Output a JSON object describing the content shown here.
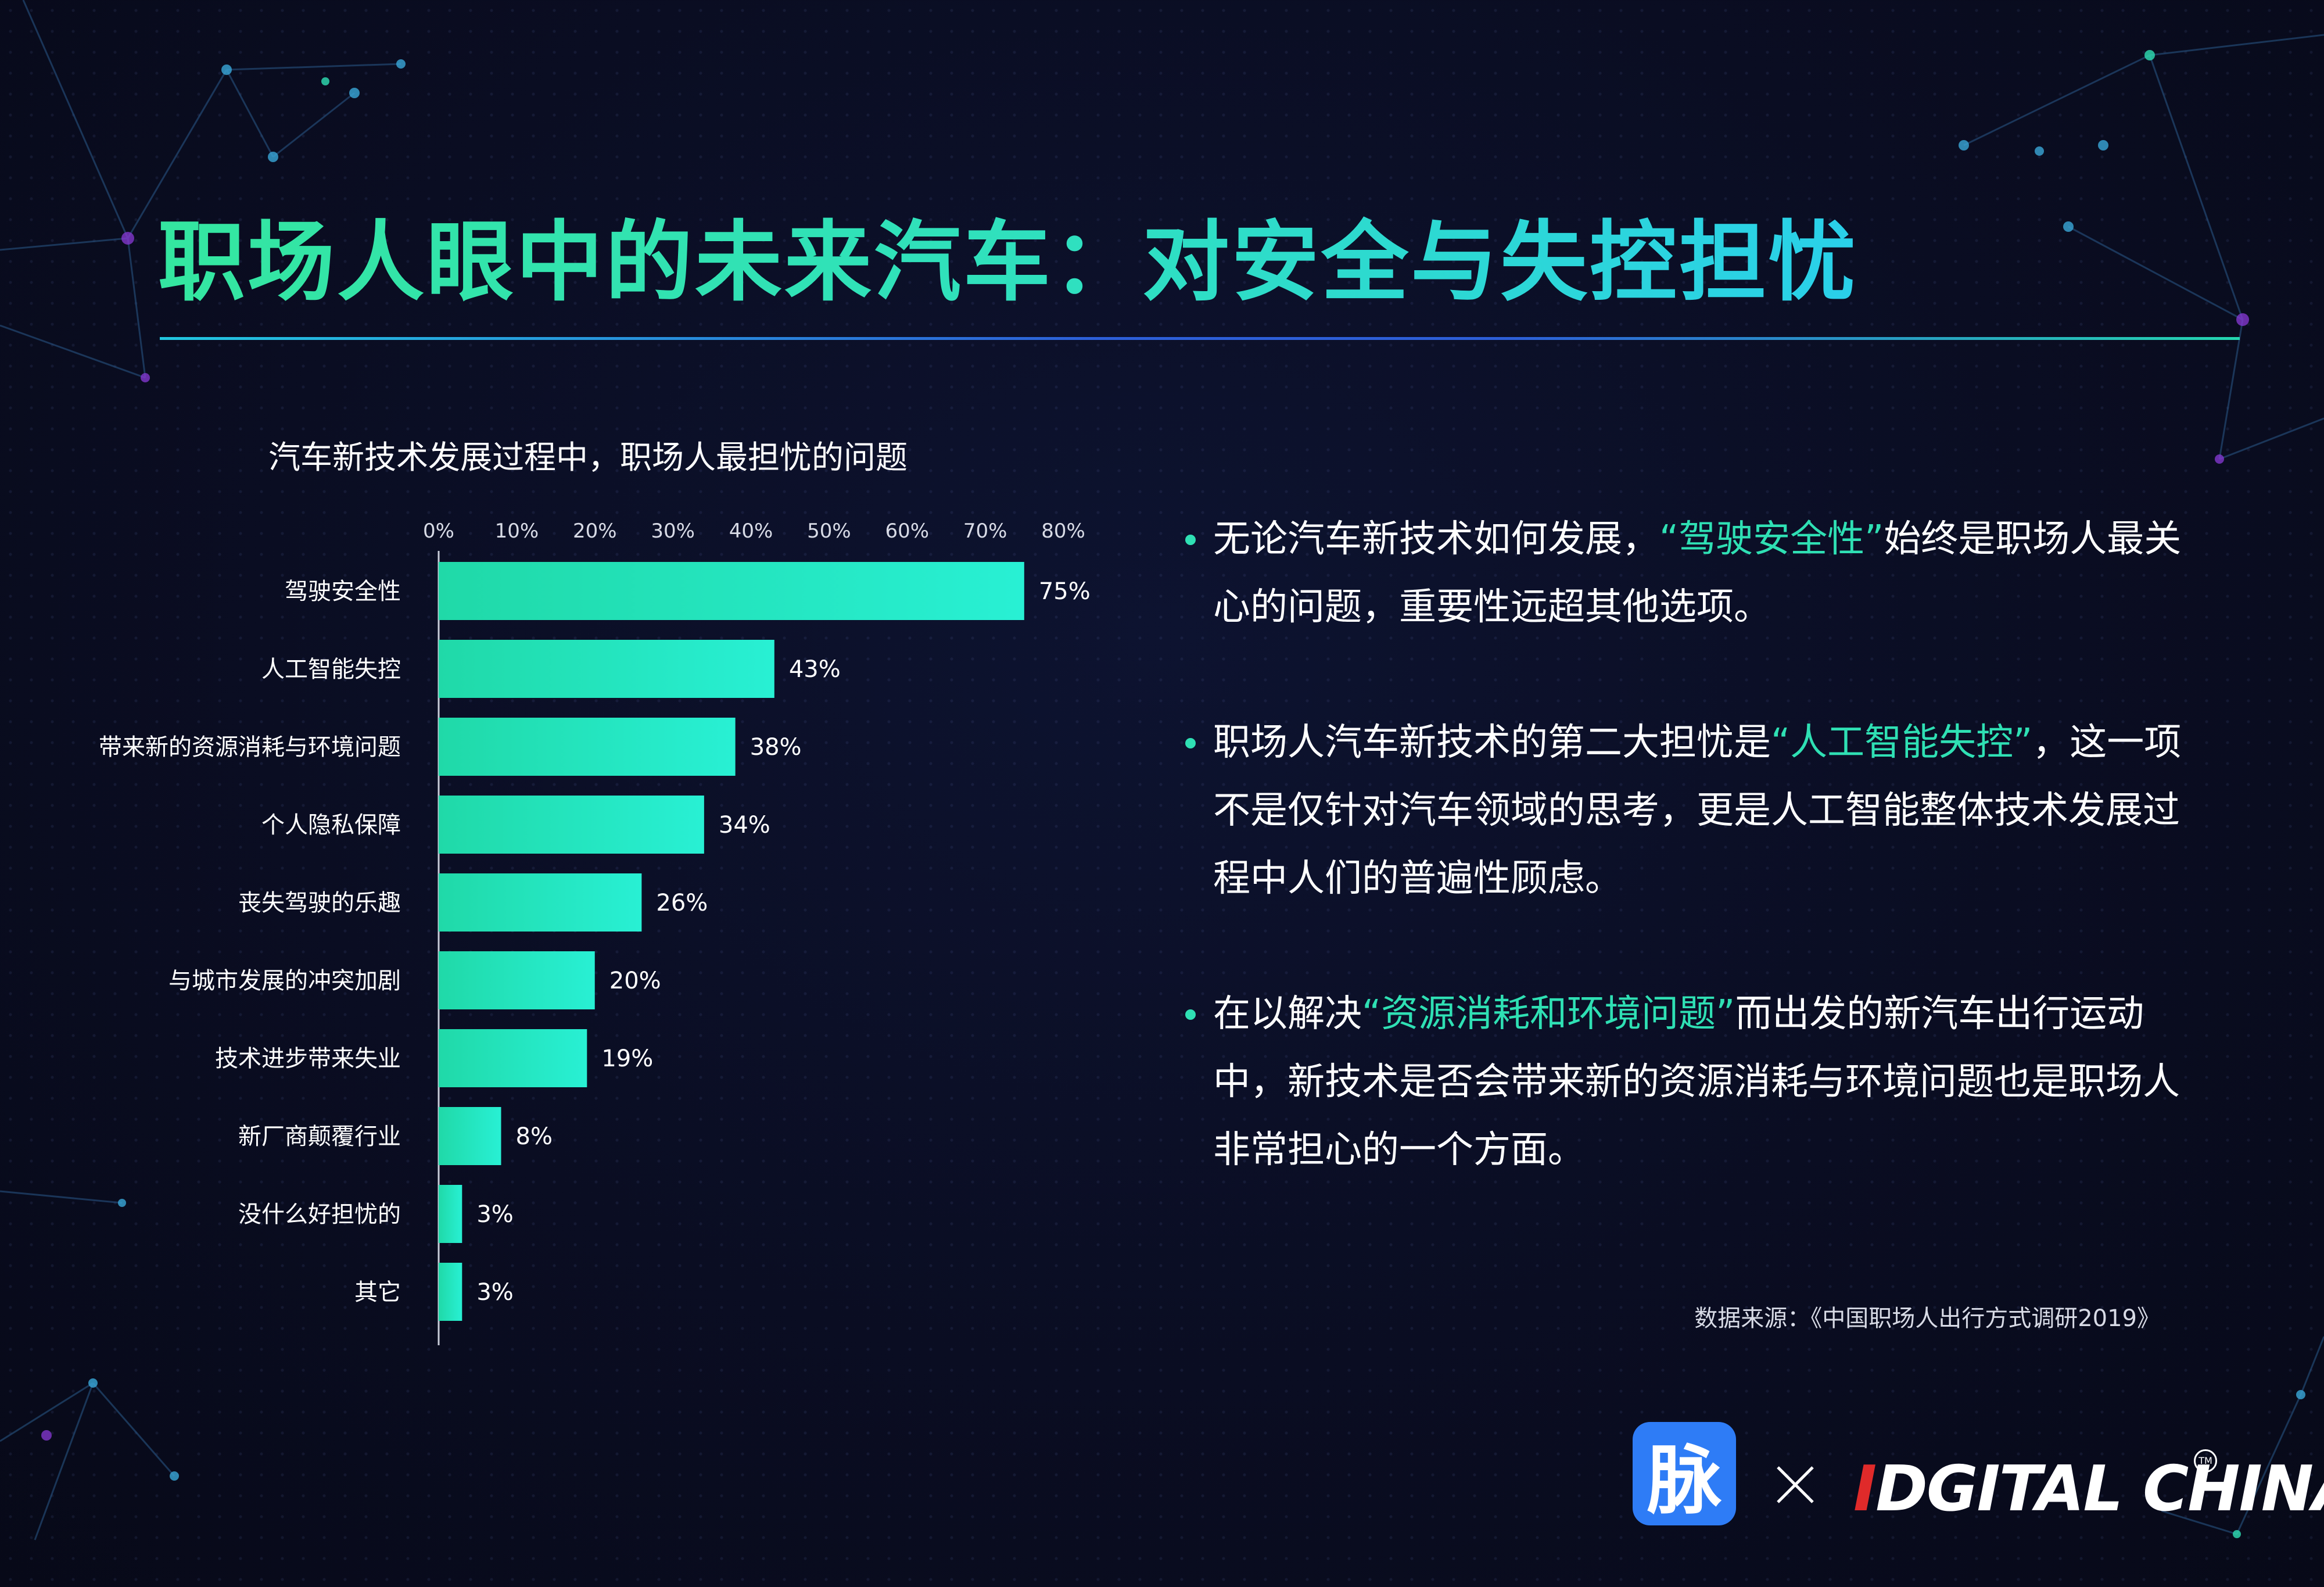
{
  "title": "职场人眼中的未来汽车：对安全与失控担忧",
  "chart_data": {
    "type": "bar",
    "orientation": "horizontal",
    "title": "汽车新技术发展过程中，职场人最担忧的问题",
    "categories": [
      "驾驶安全性",
      "人工智能失控",
      "带来新的资源消耗与环境问题",
      "个人隐私保障",
      "丧失驾驶的乐趣",
      "与城市发展的冲突加剧",
      "技术进步带来失业",
      "新厂商颠覆行业",
      "没什么好担忧的",
      "其它"
    ],
    "values": [
      75,
      43,
      38,
      34,
      26,
      20,
      19,
      8,
      3,
      3
    ],
    "value_labels": [
      "75%",
      "43%",
      "38%",
      "34%",
      "26%",
      "20%",
      "19%",
      "8%",
      "3%",
      "3%"
    ],
    "xlim": [
      0,
      80
    ],
    "x_ticks": [
      "0%",
      "10%",
      "20%",
      "30%",
      "40%",
      "50%",
      "60%",
      "70%",
      "80%"
    ],
    "axis_position": "top",
    "grid": false,
    "bar_color_start": "#20d9a8",
    "bar_color_end": "#28f0d4"
  },
  "bullets": [
    {
      "pre": "无论汽车新技术如何发展，",
      "highlight": "“驾驶安全性”",
      "post": "始终是职场人最关心的问题，重要性远超其他选项。"
    },
    {
      "pre": "职场人汽车新技术的第二大担忧是",
      "highlight": "“人工智能失控”",
      "post": "，这一项不是仅针对汽车领域的思考，更是人工智能整体技术发展过程中人们的普遍性顾虑。"
    },
    {
      "pre": "在以解决",
      "highlight": "“资源消耗和环境问题”",
      "post": "而出发的新汽车出行运动中，新技术是否会带来新的资源消耗与环境问题也是职场人非常担心的一个方面。"
    }
  ],
  "source": "数据来源：《中国职场人出行方式调研2019》",
  "logos": {
    "maimai_char": "脉",
    "separator": "×",
    "partner_red": "I",
    "partner_rest": "DGITAL CHINA",
    "tm": "TM"
  },
  "colors": {
    "highlight": "#2fe0b4",
    "background": "#0a0d22",
    "maimai_blue": "#2e7cf6",
    "digital_china_red": "#e02a2a"
  }
}
